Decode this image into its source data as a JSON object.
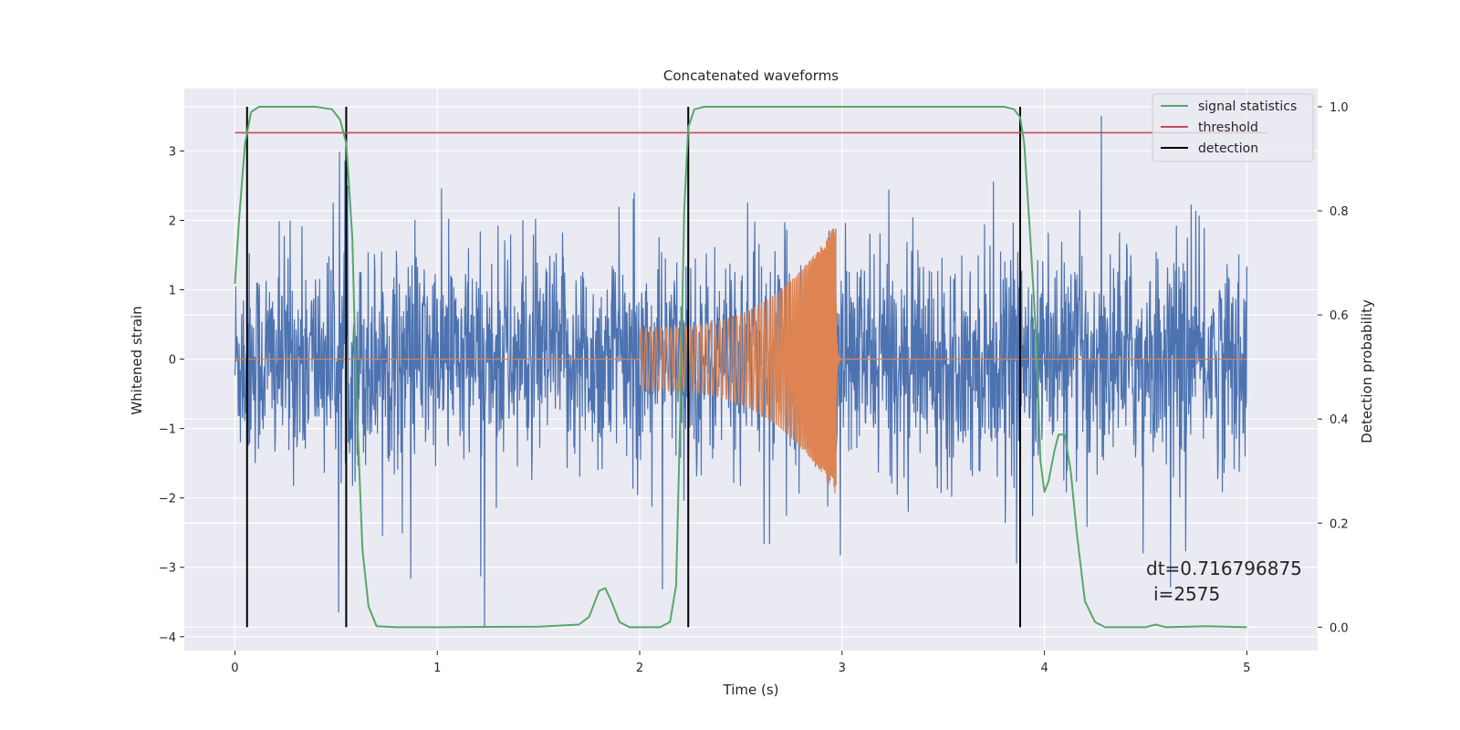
{
  "chart_data": {
    "type": "line",
    "title": "Concatenated waveforms",
    "xlabel": "Time (s)",
    "ylabel": "Whitened strain",
    "ylabel_right": "Detection probability",
    "xlim": [
      -0.25,
      5.35
    ],
    "ylim": [
      -4.2,
      3.9
    ],
    "ylim_right": [
      -0.045,
      1.035
    ],
    "xticks": [
      0,
      1,
      2,
      3,
      4,
      5
    ],
    "yticks": [
      -4,
      -3,
      -2,
      -1,
      0,
      1,
      2,
      3
    ],
    "yticks_right": [
      0.0,
      0.2,
      0.4,
      0.6,
      0.8,
      1.0
    ],
    "grid": true,
    "legend_position": "top-right",
    "colors": {
      "noise": "#4c72b0",
      "signal": "#dd8452",
      "statistics": "#55a868",
      "threshold": "#c44e52",
      "detection": "#000000",
      "background": "#eaeaf2"
    },
    "series": [
      {
        "role": "whitened-noise",
        "axis": "left",
        "x_range": [
          0,
          5
        ],
        "envelope_typical": 1.6,
        "envelope_peak": [
          -3.85,
          3.5
        ]
      },
      {
        "role": "injected-chirp",
        "axis": "left",
        "x_start": 2.0,
        "x_end": 2.97,
        "amplitude_start": 0.45,
        "amplitude_peak": 1.95
      },
      {
        "name": "signal statistics",
        "axis": "right",
        "x": [
          0,
          0.02,
          0.05,
          0.08,
          0.12,
          0.2,
          0.3,
          0.4,
          0.48,
          0.52,
          0.55,
          0.58,
          0.6,
          0.63,
          0.66,
          0.7,
          0.8,
          1.0,
          1.5,
          1.7,
          1.75,
          1.8,
          1.83,
          1.86,
          1.9,
          1.95,
          2.1,
          2.15,
          2.18,
          2.2,
          2.22,
          2.24,
          2.27,
          2.32,
          2.4,
          2.6,
          3.0,
          3.5,
          3.8,
          3.85,
          3.88,
          3.9,
          3.93,
          3.96,
          3.98,
          4.0,
          4.02,
          4.05,
          4.07,
          4.1,
          4.13,
          4.16,
          4.2,
          4.25,
          4.3,
          4.5,
          4.55,
          4.6,
          4.8,
          5.0
        ],
        "y": [
          0.66,
          0.78,
          0.93,
          0.99,
          1.0,
          1.0,
          1.0,
          1.0,
          0.995,
          0.975,
          0.93,
          0.75,
          0.45,
          0.15,
          0.04,
          0.002,
          0.0,
          0.0,
          0.001,
          0.005,
          0.02,
          0.07,
          0.075,
          0.05,
          0.01,
          0.0,
          0.0,
          0.01,
          0.08,
          0.4,
          0.8,
          0.96,
          0.995,
          1.0,
          1.0,
          1.0,
          1.0,
          1.0,
          1.0,
          0.995,
          0.98,
          0.93,
          0.75,
          0.55,
          0.32,
          0.26,
          0.28,
          0.34,
          0.37,
          0.37,
          0.3,
          0.18,
          0.05,
          0.01,
          0.0,
          0.0,
          0.005,
          0.0,
          0.002,
          0.0
        ]
      },
      {
        "name": "threshold",
        "axis": "right",
        "x": [
          0,
          5.1
        ],
        "y": [
          0.95,
          0.95
        ]
      },
      {
        "name": "detection",
        "axis": "right",
        "type": "vlines",
        "x": [
          0.06,
          0.55,
          2.24,
          3.88
        ],
        "y_range": [
          0.0,
          1.0
        ]
      }
    ],
    "legend": [
      "signal statistics",
      "threshold",
      "detection"
    ],
    "annotations": [
      "dt=0.716796875",
      "i=2575"
    ]
  }
}
